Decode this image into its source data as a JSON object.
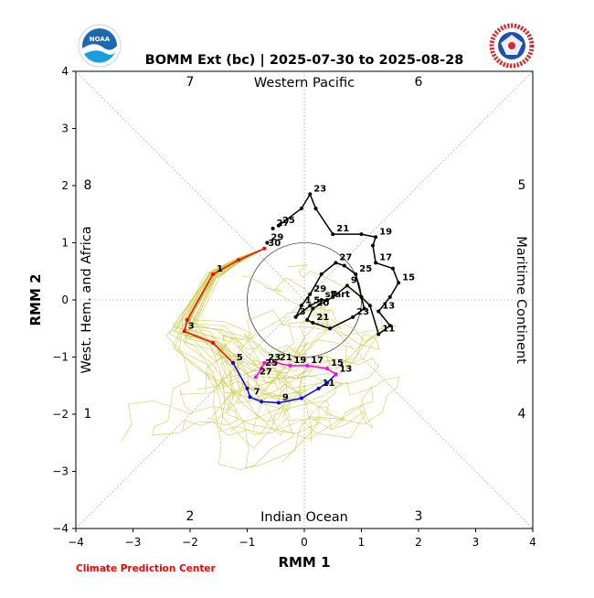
{
  "chart_data": {
    "type": "line",
    "title": "BOMM Ext (bc) | 2025-07-30 to 2025-08-28",
    "xlabel": "RMM 1",
    "ylabel": "RMM 2",
    "xlim": [
      -4,
      4
    ],
    "ylim": [
      -4,
      4
    ],
    "xticks": [
      "−4",
      "−3",
      "−2",
      "−1",
      "0",
      "1",
      "2",
      "3",
      "4"
    ],
    "yticks": [
      "−4",
      "−3",
      "−2",
      "−1",
      "0",
      "1",
      "2",
      "3",
      "4"
    ],
    "phases": [
      "1",
      "2",
      "3",
      "4",
      "5",
      "6",
      "7",
      "8"
    ],
    "regions": {
      "top": "Western Pacific",
      "bottom": "Indian Ocean",
      "left": "West. Hem. and Africa",
      "right": "Maritime Continent"
    },
    "footer": "Climate Prediction Center",
    "colors": {
      "observed": "#000000",
      "ensemble": "#c8c83a",
      "seg1": "#ff0000",
      "seg2": "#0000ff",
      "seg3": "#ff00ff",
      "grid": "#999999"
    },
    "observed": {
      "name": "observed",
      "points": [
        {
          "x": -0.45,
          "y": 1.3,
          "label": "25"
        },
        {
          "x": -0.05,
          "y": 1.6,
          "label": ""
        },
        {
          "x": 0.1,
          "y": 1.85,
          "label": "23"
        },
        {
          "x": 0.2,
          "y": 1.6,
          "label": ""
        },
        {
          "x": 0.5,
          "y": 1.15,
          "label": "21"
        },
        {
          "x": 1.0,
          "y": 1.15,
          "label": ""
        },
        {
          "x": 1.25,
          "y": 1.1,
          "label": "19"
        },
        {
          "x": 1.2,
          "y": 0.95,
          "label": ""
        },
        {
          "x": 1.25,
          "y": 0.65,
          "label": "17"
        },
        {
          "x": 1.55,
          "y": 0.55,
          "label": ""
        },
        {
          "x": 1.65,
          "y": 0.3,
          "label": "15"
        },
        {
          "x": 1.5,
          "y": 0.05,
          "label": ""
        },
        {
          "x": 1.3,
          "y": -0.2,
          "label": "13"
        },
        {
          "x": 1.5,
          "y": -0.45,
          "label": ""
        },
        {
          "x": 1.3,
          "y": -0.6,
          "label": "11"
        },
        {
          "x": 1.15,
          "y": -0.1,
          "label": ""
        },
        {
          "x": 1.0,
          "y": 0.05,
          "label": ""
        },
        {
          "x": 0.75,
          "y": 0.25,
          "label": "9"
        },
        {
          "x": 0.5,
          "y": 0.05,
          "label": ""
        },
        {
          "x": 0.15,
          "y": -0.15,
          "label": "20"
        },
        {
          "x": 0.05,
          "y": -0.35,
          "label": ""
        },
        {
          "x": 0.15,
          "y": -0.4,
          "label": "21"
        },
        {
          "x": 0.45,
          "y": -0.5,
          "label": ""
        },
        {
          "x": 0.85,
          "y": -0.3,
          "label": "23"
        },
        {
          "x": 1.05,
          "y": -0.15,
          "label": ""
        },
        {
          "x": 1.0,
          "y": 0.05,
          "label": ""
        },
        {
          "x": 0.9,
          "y": 0.45,
          "label": "25"
        },
        {
          "x": 0.7,
          "y": 0.6,
          "label": ""
        },
        {
          "x": 0.55,
          "y": 0.65,
          "label": "27"
        },
        {
          "x": 0.3,
          "y": 0.45,
          "label": ""
        },
        {
          "x": 0.1,
          "y": 0.1,
          "label": "29"
        },
        {
          "x": -0.05,
          "y": -0.1,
          "label": "1"
        },
        {
          "x": -0.15,
          "y": -0.3,
          "label": "3"
        },
        {
          "x": 0.1,
          "y": -0.1,
          "label": "5"
        },
        {
          "x": 0.3,
          "y": 0.0,
          "label": "start"
        },
        {
          "x": 0.4,
          "y": 0.0,
          "label": "7"
        }
      ]
    },
    "observed_labels_extra": [
      {
        "x": -0.55,
        "y": 1.25,
        "label": "27"
      },
      {
        "x": -0.65,
        "y": 1.0,
        "label": "29"
      }
    ],
    "forecast": [
      {
        "name": "segment-1",
        "color": "#ff0000",
        "points": [
          {
            "x": -0.7,
            "y": 0.9,
            "label": "30"
          },
          {
            "x": -1.15,
            "y": 0.7,
            "label": ""
          },
          {
            "x": -1.6,
            "y": 0.45,
            "label": "1"
          },
          {
            "x": -2.05,
            "y": -0.35,
            "label": ""
          },
          {
            "x": -2.1,
            "y": -0.55,
            "label": "3"
          },
          {
            "x": -1.6,
            "y": -0.75,
            "label": ""
          },
          {
            "x": -1.25,
            "y": -1.1,
            "label": "5"
          }
        ]
      },
      {
        "name": "segment-2",
        "color": "#0000ff",
        "points": [
          {
            "x": -1.25,
            "y": -1.1,
            "label": ""
          },
          {
            "x": -1.0,
            "y": -1.55,
            "label": ""
          },
          {
            "x": -0.95,
            "y": -1.7,
            "label": "7"
          },
          {
            "x": -0.75,
            "y": -1.78,
            "label": ""
          },
          {
            "x": -0.45,
            "y": -1.8,
            "label": "9"
          },
          {
            "x": -0.05,
            "y": -1.72,
            "label": ""
          },
          {
            "x": 0.25,
            "y": -1.55,
            "label": "11"
          },
          {
            "x": 0.4,
            "y": -1.45,
            "label": ""
          },
          {
            "x": 0.55,
            "y": -1.3,
            "label": "13"
          }
        ]
      },
      {
        "name": "segment-3",
        "color": "#ff00ff",
        "points": [
          {
            "x": 0.55,
            "y": -1.3,
            "label": ""
          },
          {
            "x": 0.4,
            "y": -1.2,
            "label": "15"
          },
          {
            "x": 0.05,
            "y": -1.15,
            "label": "17"
          },
          {
            "x": -0.25,
            "y": -1.15,
            "label": "19"
          },
          {
            "x": -0.5,
            "y": -1.1,
            "label": "21"
          },
          {
            "x": -0.7,
            "y": -1.1,
            "label": "23"
          },
          {
            "x": -0.75,
            "y": -1.2,
            "label": "25"
          },
          {
            "x": -0.85,
            "y": -1.35,
            "label": "27"
          }
        ]
      }
    ]
  }
}
